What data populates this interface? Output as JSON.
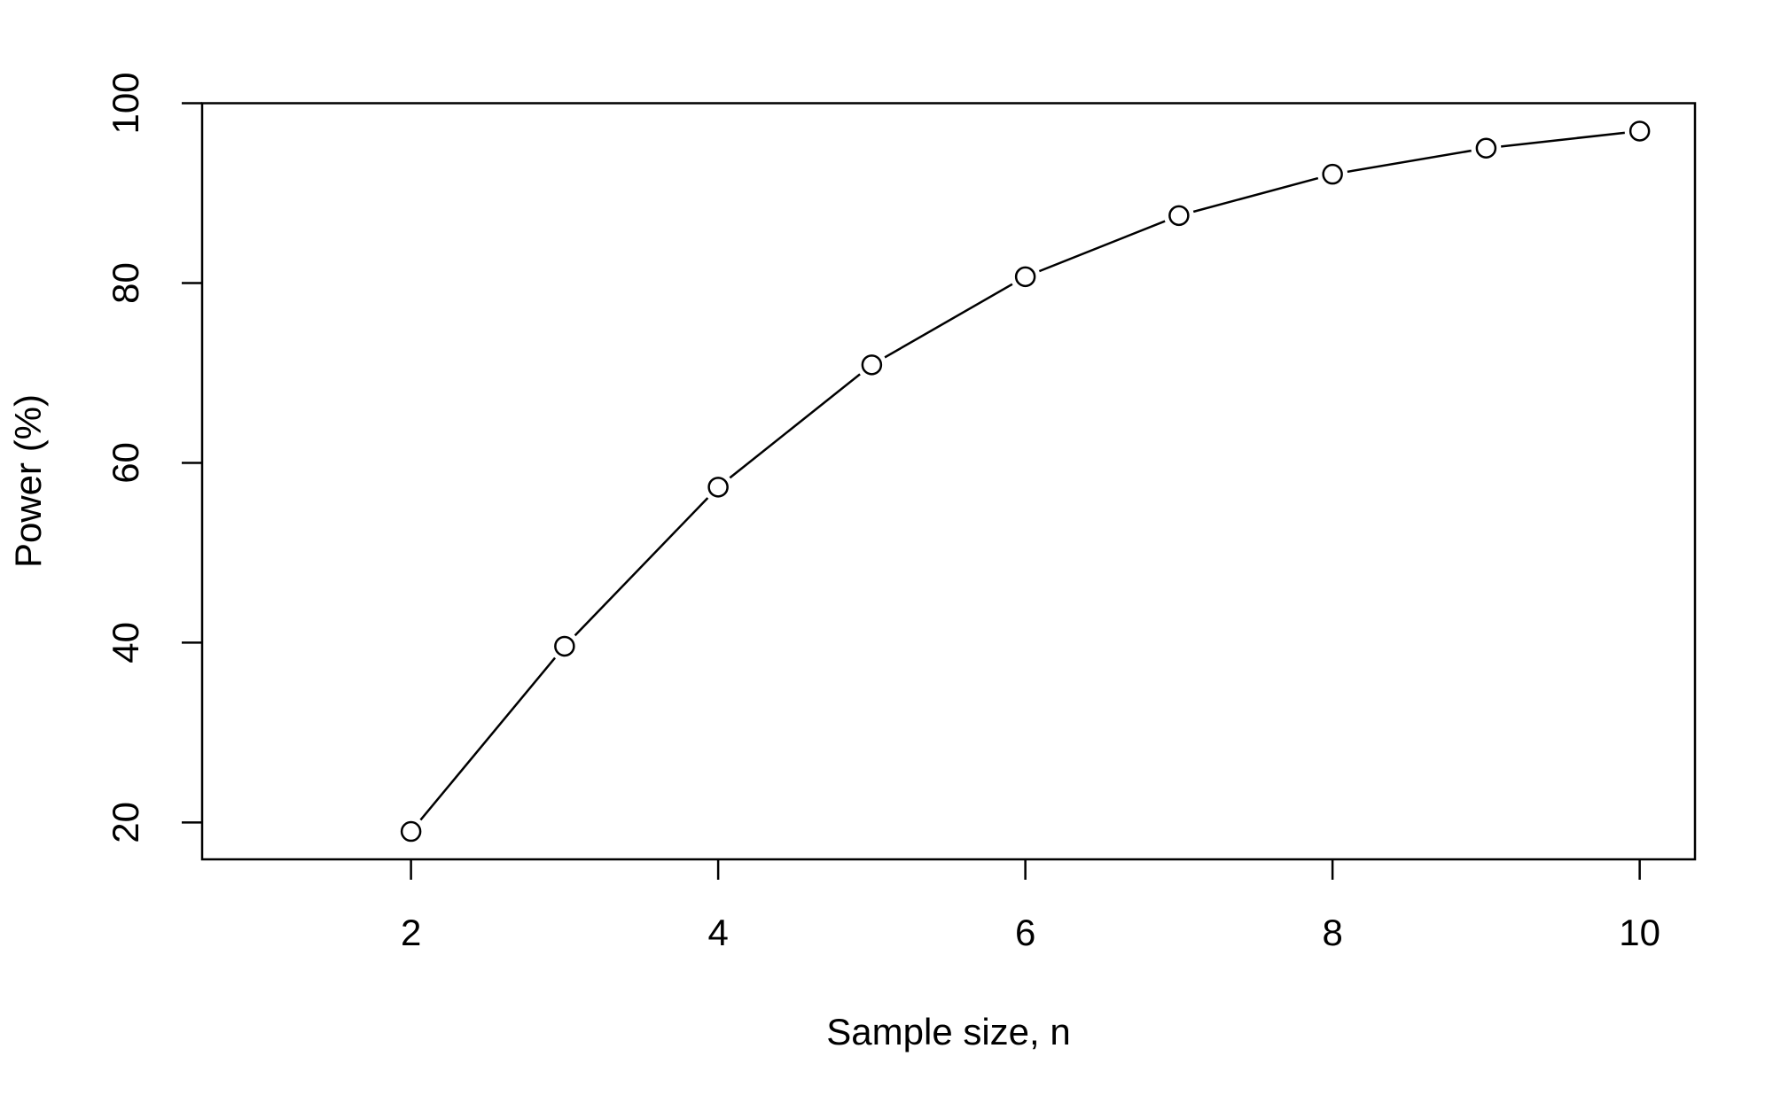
{
  "chart_data": {
    "type": "line",
    "x_label": "Sample size, n",
    "y_label": "Power (%)",
    "x": [
      2,
      3,
      4,
      5,
      6,
      7,
      8,
      9,
      10
    ],
    "values": [
      19,
      39.6,
      57.3,
      70.9,
      80.7,
      87.5,
      92.1,
      95,
      96.9
    ],
    "color": "#000000",
    "marker": "open-circle",
    "xlim": [
      0.64,
      10.36
    ],
    "xticks": [
      2,
      4,
      6,
      8,
      10
    ],
    "ylim": [
      15.9,
      100
    ],
    "yticks": [
      20,
      40,
      60,
      80,
      100
    ],
    "grid": false
  }
}
